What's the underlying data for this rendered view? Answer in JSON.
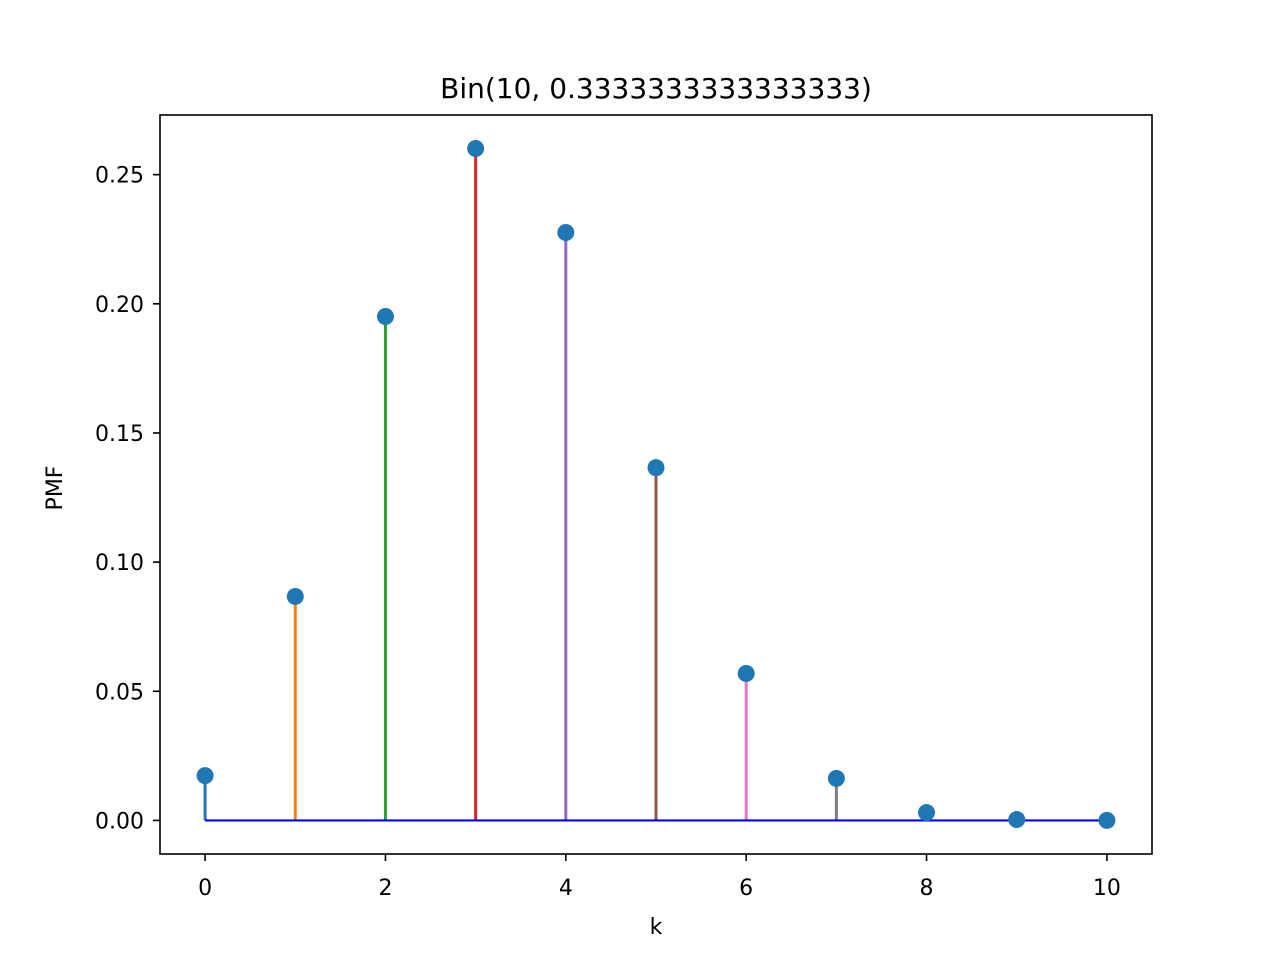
{
  "chart_data": {
    "type": "stem",
    "title": "Bin(10, 0.3333333333333333)",
    "xlabel": "k",
    "ylabel": "PMF",
    "xlim": [
      -0.5,
      10.5
    ],
    "ylim": [
      -0.013,
      0.2731
    ],
    "x_ticks": [
      0,
      2,
      4,
      6,
      8,
      10
    ],
    "x_tick_labels": [
      "0",
      "2",
      "4",
      "6",
      "8",
      "10"
    ],
    "y_ticks": [
      0.0,
      0.05,
      0.1,
      0.15,
      0.2,
      0.25
    ],
    "y_tick_labels": [
      "0.00",
      "0.05",
      "0.10",
      "0.15",
      "0.20",
      "0.25"
    ],
    "grid": false,
    "baseline": 0,
    "marker_color": "#1f77b4",
    "baseline_color": "#0000ff",
    "stem_colors": [
      "#1f77b4",
      "#ff7f0e",
      "#2ca02c",
      "#d62728",
      "#9467bd",
      "#8c564b",
      "#e377c2",
      "#7f7f7f",
      "#bcbd22",
      "#17becf",
      "#1f77b4"
    ],
    "x": [
      0,
      1,
      2,
      3,
      4,
      5,
      6,
      7,
      8,
      9,
      10
    ],
    "values": [
      0.01734,
      0.08671,
      0.19509,
      0.26012,
      0.22761,
      0.13656,
      0.0569,
      0.01626,
      0.00305,
      0.00034,
      2e-05
    ]
  }
}
